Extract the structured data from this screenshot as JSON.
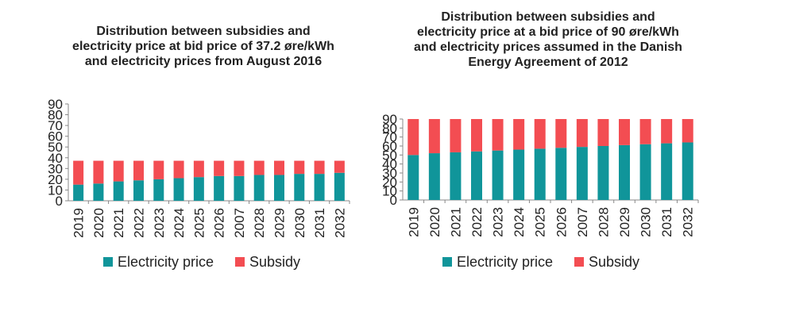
{
  "colors": {
    "electricity": "#10959a",
    "subsidy": "#f34d52",
    "axis": "#888888"
  },
  "chart_data": [
    {
      "type": "bar",
      "stacked": true,
      "title": "Distribution between subsidies and electricity price at bid price of 37.2 øre/kWh and electricity prices from August 2016",
      "categories": [
        "2019",
        "2020",
        "2021",
        "2022",
        "2023",
        "2024",
        "2025",
        "2026",
        "2007",
        "2028",
        "2029",
        "2030",
        "2031",
        "2032"
      ],
      "series": [
        {
          "name": "Electricity price",
          "values": [
            15,
            16,
            18,
            19,
            20,
            21,
            22,
            23,
            23,
            24,
            24,
            25,
            25,
            26
          ]
        },
        {
          "name": "Subsidy",
          "values": [
            22.2,
            21.2,
            19.2,
            18.2,
            17.2,
            16.2,
            15.2,
            14.2,
            14.2,
            13.2,
            13.2,
            12.2,
            12.2,
            11.2
          ]
        }
      ],
      "ylim": [
        0,
        90
      ],
      "yticks": [
        0,
        10,
        20,
        30,
        40,
        50,
        60,
        70,
        80,
        90
      ],
      "legend": "bottom"
    },
    {
      "type": "bar",
      "stacked": true,
      "title": "Distribution between subsidies and electricity price at a bid price of 90 øre/kWh and electricity prices assumed in the Danish Energy Agreement of 2012",
      "categories": [
        "2019",
        "2020",
        "2021",
        "2022",
        "2023",
        "2024",
        "2025",
        "2026",
        "2007",
        "2028",
        "2029",
        "2030",
        "2031",
        "2032"
      ],
      "series": [
        {
          "name": "Electricity price",
          "values": [
            50,
            52,
            53,
            54,
            55,
            56,
            57,
            58,
            59,
            60,
            61,
            62,
            63,
            64
          ]
        },
        {
          "name": "Subsidy",
          "values": [
            40,
            38,
            37,
            36,
            35,
            34,
            33,
            32,
            31,
            30,
            29,
            28,
            27,
            26
          ]
        }
      ],
      "ylim": [
        0,
        90
      ],
      "yticks": [
        0,
        10,
        20,
        30,
        40,
        50,
        60,
        70,
        80,
        90
      ],
      "legend": "bottom"
    }
  ]
}
